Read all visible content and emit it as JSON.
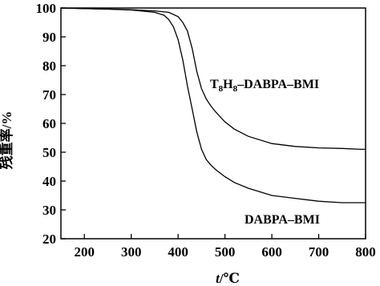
{
  "chart_data": {
    "type": "line",
    "xlabel": "t/℃",
    "ylabel": "残重率/%",
    "xlim": [
      150,
      800
    ],
    "ylim": [
      20,
      100
    ],
    "xticks": [
      200,
      300,
      400,
      500,
      600,
      700,
      800
    ],
    "yticks": [
      20,
      30,
      40,
      50,
      60,
      70,
      80,
      90,
      100
    ],
    "grid": false,
    "legend": "none",
    "line_color": "#000000",
    "series": [
      {
        "name": "T8H8–DABPA–BMI",
        "label_text": "T8H8–DABPA–BMI",
        "x": [
          150,
          200,
          250,
          300,
          350,
          380,
          400,
          410,
          420,
          430,
          440,
          450,
          460,
          470,
          480,
          500,
          520,
          550,
          600,
          650,
          700,
          750,
          790,
          800
        ],
        "y": [
          100,
          99.8,
          99.6,
          99.4,
          99,
          98.5,
          97,
          95,
          92,
          86,
          78,
          72,
          68.5,
          66,
          64,
          60.5,
          58,
          55.5,
          53,
          52,
          51.5,
          51.3,
          51,
          51
        ]
      },
      {
        "name": "DABPA–BMI",
        "label_text": "DABPA–BMI",
        "x": [
          150,
          200,
          250,
          300,
          350,
          370,
          380,
          390,
          400,
          410,
          420,
          430,
          440,
          450,
          460,
          470,
          480,
          500,
          520,
          550,
          600,
          650,
          700,
          750,
          800
        ],
        "y": [
          100,
          99.8,
          99.6,
          99.3,
          98.5,
          97.5,
          96,
          93.5,
          89,
          82,
          73,
          65,
          57,
          51,
          47.5,
          45.5,
          44,
          41.5,
          39.5,
          37.5,
          35,
          34,
          33,
          32.5,
          32.5
        ]
      }
    ]
  }
}
